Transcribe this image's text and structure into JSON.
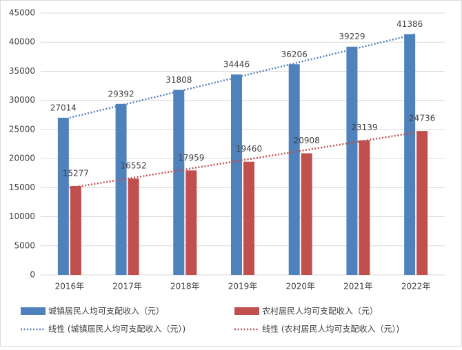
{
  "chart_data": {
    "type": "bar",
    "categories": [
      "2016年",
      "2017年",
      "2018年",
      "2019年",
      "2020年",
      "2021年",
      "2022年"
    ],
    "series": [
      {
        "name": "城镇居民人均可支配收入（元）",
        "color": "#4f81bd",
        "values": [
          27014,
          29392,
          31808,
          34446,
          36206,
          39229,
          41386
        ],
        "trendline": {
          "type": "linear",
          "name": "线性 (城镇居民人均可支配收入（元）)"
        }
      },
      {
        "name": "农村居民人均可支配收入（元）",
        "color": "#c0504d",
        "values": [
          15277,
          16552,
          17959,
          19460,
          20908,
          23139,
          24736
        ],
        "trendline": {
          "type": "linear",
          "name": "线性 (农村居民人均可支配收入（元）)"
        }
      }
    ],
    "ylim": [
      0,
      45000
    ],
    "yticks": [
      0,
      5000,
      10000,
      15000,
      20000,
      25000,
      30000,
      35000,
      40000,
      45000
    ],
    "grid": true,
    "legend": "bottom"
  }
}
